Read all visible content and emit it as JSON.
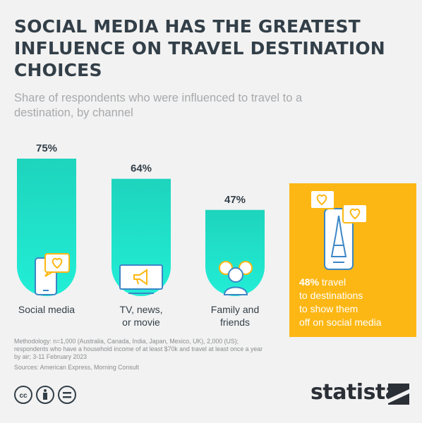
{
  "header": {
    "title": "SOCIAL MEDIA HAS THE GREATEST INFLUENCE ON TRAVEL DESTINATION CHOICES",
    "subtitle": "Share of respondents who were influenced to travel to a destination, by channel"
  },
  "chart_data": {
    "type": "bar",
    "categories": [
      "Social media",
      "TV, news, or movie",
      "Family and friends"
    ],
    "category_lines": [
      [
        "Social media"
      ],
      [
        "TV, news,",
        "or movie"
      ],
      [
        "Family and",
        "friends"
      ]
    ],
    "values": [
      75,
      64,
      47
    ],
    "value_labels": [
      "75%",
      "64%",
      "47%"
    ],
    "ylim": [
      0,
      100
    ],
    "bar_color": "#1de8c8",
    "bar_gradient_top": "#1ed4bd",
    "bar_gradient_bottom": "#20ecd6",
    "title": "SOCIAL MEDIA HAS THE GREATEST INFLUENCE ON TRAVEL DESTINATION CHOICES",
    "subtitle": "Share of respondents who were influenced to travel to a destination, by channel",
    "icons": [
      "smartphone-heart-icon",
      "tv-megaphone-icon",
      "family-heart-icon"
    ]
  },
  "callout": {
    "highlight": "48%",
    "text": "travel to destinations to show them off on social media",
    "line1_rest": "travel",
    "line2": "to destinations",
    "line3": "to show them",
    "line4": "off on social media",
    "color": "#fdb714",
    "icon": "phone-eiffel-tower-icon"
  },
  "footer": {
    "methodology": "Methodology: n=1,000 (Australia, Canada, India, Japan, Mexico, UK), 2,000 (US); respondents who have a household income of at least $70k and travel at least once a year by air; 3-11 February 2023",
    "sources": "Sources: American Express, Morning Consult",
    "brand": "statista",
    "license_icons": [
      "cc-icon",
      "attribution-icon",
      "no-derivatives-icon"
    ]
  },
  "colors": {
    "title": "#333f48",
    "subtitle": "#a7a9ac",
    "icon_blue": "#3b86c6",
    "background": "#f2f2f2"
  }
}
